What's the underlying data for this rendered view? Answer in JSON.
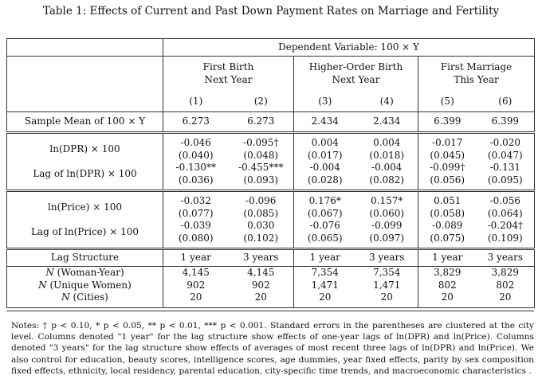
{
  "caption": "Table 1: Effects of Current and Past Down Payment Rates on Marriage and Fertility",
  "header": {
    "dependent_variable": "Dependent Variable: 100 × Y",
    "groups": [
      {
        "line1": "First Birth",
        "line2": "Next Year"
      },
      {
        "line1": "Higher-Order Birth",
        "line2": "Next Year"
      },
      {
        "line1": "First Marriage",
        "line2": "This Year"
      }
    ],
    "column_numbers": [
      "(1)",
      "(2)",
      "(3)",
      "(4)",
      "(5)",
      "(6)"
    ]
  },
  "sample_mean": {
    "label": "Sample Mean of 100 × Y",
    "values": [
      "6.273",
      "6.273",
      "2.434",
      "2.434",
      "6.399",
      "6.399"
    ]
  },
  "dpr": {
    "label": "ln(DPR) × 100",
    "coef": [
      "-0.046",
      "-0.095†",
      "0.004",
      "0.004",
      "-0.017",
      "-0.020"
    ],
    "se": [
      "(0.040)",
      "(0.048)",
      "(0.017)",
      "(0.018)",
      "(0.045)",
      "(0.047)"
    ]
  },
  "lag_dpr": {
    "label": "Lag of ln(DPR) × 100",
    "coef": [
      "-0.130**",
      "-0.455***",
      "-0.004",
      "-0.004",
      "-0.099†",
      "-0.131"
    ],
    "se": [
      "(0.036)",
      "(0.093)",
      "(0.028)",
      "(0.082)",
      "(0.056)",
      "(0.095)"
    ]
  },
  "price": {
    "label": "ln(Price) × 100",
    "coef": [
      "-0.032",
      "-0.096",
      "0.176*",
      "0.157*",
      "0.051",
      "-0.056"
    ],
    "se": [
      "(0.077)",
      "(0.085)",
      "(0.067)",
      "(0.060)",
      "(0.058)",
      "(0.064)"
    ]
  },
  "lag_price": {
    "label": "Lag of ln(Price) × 100",
    "coef": [
      "-0.039",
      "0.030",
      "-0.076",
      "-0.099",
      "-0.089",
      "-0.204†"
    ],
    "se": [
      "(0.080)",
      "(0.102)",
      "(0.065)",
      "(0.097)",
      "(0.075)",
      "(0.109)"
    ]
  },
  "lag_structure": {
    "label": "Lag Structure",
    "values": [
      "1 year",
      "3 years",
      "1 year",
      "3 years",
      "1 year",
      "3 years"
    ]
  },
  "counts": [
    {
      "label_var": "N",
      "label_rest": "(Woman-Year)",
      "values": [
        "4,145",
        "4,145",
        "7,354",
        "7,354",
        "3,829",
        "3,829"
      ]
    },
    {
      "label_var": "N",
      "label_rest": "(Unique Women)",
      "values": [
        "902",
        "902",
        "1,471",
        "1,471",
        "802",
        "802"
      ]
    },
    {
      "label_var": "N",
      "label_rest": "(Cities)",
      "values": [
        "20",
        "20",
        "20",
        "20",
        "20",
        "20"
      ]
    }
  ],
  "notes": "Notes: † p < 0.10, * p < 0.05, ** p < 0.01, *** p < 0.001. Standard errors in the parentheses are clustered at the city level. Columns denoted \"1 year\" for the lag structure show effects of one-year lags of ln(DPR) and ln(Price). Columns denoted \"3 years\" for the lag structure show effects of averages of most recent three lags of ln(DPR) and ln(Price). We also control for education, beauty scores, intelligence scores, age dummies, year fixed effects, parity by sex composition fixed effects, ethnicity, local residency, parental education, city-specific time trends, and macroeconomic characteristics ."
}
